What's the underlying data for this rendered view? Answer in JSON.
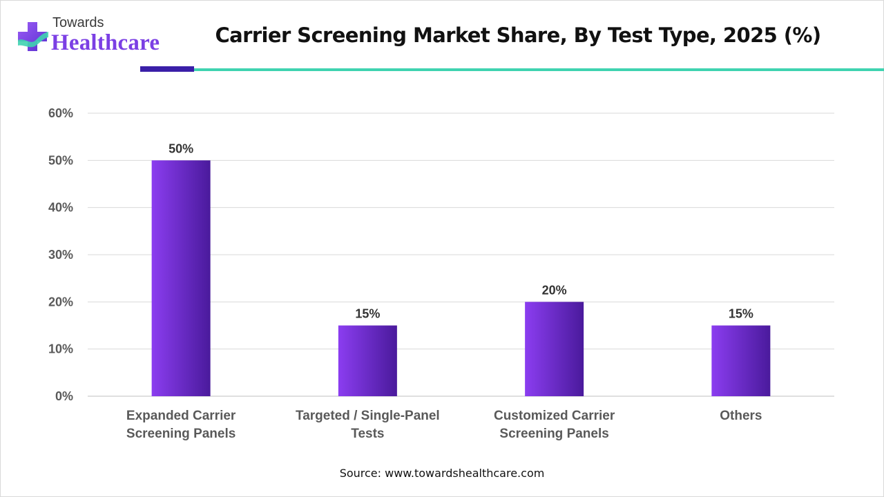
{
  "brand": {
    "top": "Towards",
    "main": "Healthcare",
    "primary_color": "#7b3fe4",
    "accent_color": "#3fd3b0",
    "icon": "medical-cross-icon"
  },
  "title": "Carrier Screening Market Share, By Test Type, 2025 (%)",
  "source": "Source: www.towardshealthcare.com",
  "chart_data": {
    "type": "bar",
    "categories": [
      [
        "Expanded Carrier",
        "Screening Panels"
      ],
      [
        "Targeted / Single-Panel",
        "Tests"
      ],
      [
        "Customized Carrier",
        "Screening Panels"
      ],
      [
        "Others"
      ]
    ],
    "values": [
      50,
      15,
      20,
      15
    ],
    "value_labels": [
      "50%",
      "15%",
      "20%",
      "15%"
    ],
    "ylim": [
      0,
      60
    ],
    "yticks": [
      0,
      10,
      20,
      30,
      40,
      50,
      60
    ],
    "ytick_labels": [
      "0%",
      "10%",
      "20%",
      "30%",
      "40%",
      "50%",
      "60%"
    ],
    "grid": true,
    "bar_colors": [
      "#8b3df0",
      "#4a1a9c"
    ]
  }
}
